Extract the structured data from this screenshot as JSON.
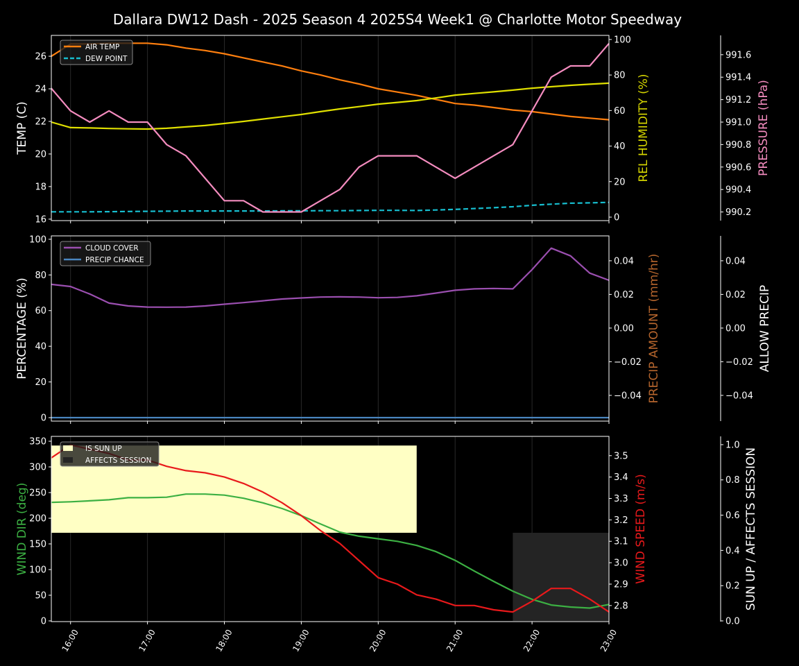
{
  "chart_data": {
    "type": "line",
    "title": "Dallara DW12 Dash - 2025 Season 4 2025S4 Week1 @ Charlotte Motor Speedway",
    "x": [
      "15:45",
      "16:00",
      "16:15",
      "16:30",
      "16:45",
      "17:00",
      "17:15",
      "17:30",
      "17:45",
      "18:00",
      "18:15",
      "18:30",
      "18:45",
      "19:00",
      "19:15",
      "19:30",
      "19:45",
      "20:00",
      "20:15",
      "20:30",
      "20:45",
      "21:00",
      "21:15",
      "21:30",
      "21:45",
      "22:00",
      "22:15",
      "22:30",
      "22:45",
      "23:00"
    ],
    "x_ticks": [
      "16:00",
      "17:00",
      "18:00",
      "19:00",
      "20:00",
      "21:00",
      "22:00",
      "23:00"
    ],
    "panels": [
      {
        "legend": "top-left",
        "axes": [
          {
            "label": "TEMP (C)",
            "color": "#ffffff",
            "ylim": [
              15.91,
              27.28
            ],
            "ticks": [
              16,
              18,
              20,
              22,
              24,
              26
            ],
            "tick_labels": [
              "16",
              "18",
              "20",
              "22",
              "24",
              "26"
            ]
          },
          {
            "label": "REL HUMIDITY (%)",
            "color": "#d4d400",
            "ylim": [
              -1.95,
              102.3
            ],
            "ticks": [
              0,
              20,
              40,
              60,
              80,
              100
            ],
            "tick_labels": [
              "0",
              "20",
              "40",
              "60",
              "80",
              "100"
            ]
          },
          {
            "label": "PRESSURE (hPa)",
            "color": "#f48cbf",
            "ylim": [
              990.123,
              991.772
            ],
            "ticks": [
              990.2,
              990.4,
              990.6,
              990.8,
              991.0,
              991.2,
              991.4,
              991.6
            ],
            "tick_labels": [
              "990.2",
              "990.4",
              "990.6",
              "990.8",
              "991.0",
              "991.2",
              "991.4",
              "991.6"
            ]
          }
        ],
        "series": [
          {
            "name": "AIR TEMP",
            "axis": 0,
            "color": "#ff7f0e",
            "dash": false,
            "legend": true,
            "values": [
              26.0,
              26.75,
              26.75,
              26.8,
              26.8,
              26.8,
              26.7,
              26.5,
              26.35,
              26.15,
              25.9,
              25.65,
              25.4,
              25.1,
              24.85,
              24.55,
              24.3,
              24.0,
              23.8,
              23.6,
              23.35,
              23.1,
              23.0,
              22.85,
              22.7,
              22.6,
              22.45,
              22.3,
              22.2,
              22.1
            ]
          },
          {
            "name": "DEW POINT",
            "axis": 0,
            "color": "#17becf",
            "dash": true,
            "legend": true,
            "values": [
              16.45,
              16.45,
              16.45,
              16.46,
              16.47,
              16.48,
              16.49,
              16.5,
              16.5,
              16.5,
              16.5,
              16.5,
              16.51,
              16.51,
              16.52,
              16.52,
              16.53,
              16.54,
              16.54,
              16.53,
              16.56,
              16.6,
              16.65,
              16.7,
              16.76,
              16.85,
              16.92,
              16.98,
              17.0,
              17.03
            ]
          },
          {
            "name": "REL HUMIDITY",
            "axis": 1,
            "color": "#e0e000",
            "dash": false,
            "legend": false,
            "values": [
              53.5,
              50.4,
              50.2,
              49.9,
              49.7,
              49.6,
              50.0,
              50.8,
              51.6,
              52.7,
              53.9,
              55.2,
              56.5,
              57.8,
              59.4,
              60.9,
              62.2,
              63.6,
              64.6,
              65.6,
              67.1,
              68.7,
              69.6,
              70.5,
              71.5,
              72.6,
              73.4,
              74.2,
              74.8,
              75.4
            ]
          },
          {
            "name": "PRESSURE",
            "axis": 2,
            "color": "#f48cbf",
            "dash": false,
            "legend": false,
            "values": [
              991.3,
              991.1,
              991.0,
              991.1,
              991.0,
              991.0,
              990.8,
              990.7,
              990.5,
              990.3,
              990.3,
              990.2,
              990.2,
              990.2,
              990.3,
              990.4,
              990.6,
              990.7,
              990.7,
              990.7,
              990.6,
              990.5,
              990.6,
              990.7,
              990.8,
              991.1,
              991.4,
              991.5,
              991.5,
              991.7
            ]
          }
        ]
      },
      {
        "legend": "top-left",
        "axes": [
          {
            "label": "PERCENTAGE (%)",
            "color": "#ffffff",
            "ylim": [
              -1.95,
              101.9
            ],
            "ticks": [
              0,
              20,
              40,
              60,
              80,
              100
            ],
            "tick_labels": [
              "0",
              "20",
              "40",
              "60",
              "80",
              "100"
            ]
          },
          {
            "label": "PRECIP AMOUNT (mm/hr)",
            "color": "#b5652d",
            "ylim": [
              -0.0553,
              0.0548
            ],
            "ticks": [
              -0.04,
              -0.02,
              0,
              0.02,
              0.04
            ],
            "tick_labels": [
              "−0.04",
              "−0.02",
              "0.00",
              "0.02",
              "0.04"
            ]
          },
          {
            "label": "ALLOW PRECIP",
            "color": "#ffffff",
            "ylim": [
              -0.0553,
              0.0548
            ],
            "ticks": [
              -0.04,
              -0.02,
              0,
              0.02,
              0.04
            ],
            "tick_labels": [
              "−0.04",
              "−0.02",
              "0.00",
              "0.02",
              "0.04"
            ]
          }
        ],
        "series": [
          {
            "name": "CLOUD COVER",
            "axis": 0,
            "color": "#9b4fb0",
            "dash": false,
            "legend": true,
            "values": [
              74.7,
              73.5,
              69.3,
              64.2,
              62.6,
              62.0,
              61.9,
              62.0,
              62.6,
              63.6,
              64.5,
              65.5,
              66.5,
              67.1,
              67.6,
              67.7,
              67.6,
              67.2,
              67.4,
              68.3,
              69.8,
              71.4,
              72.2,
              72.4,
              72.2,
              83.0,
              95.0,
              90.7,
              81.0,
              77.0
            ]
          },
          {
            "name": "PRECIP CHANCE",
            "axis": 0,
            "color": "#4a86c0",
            "dash": false,
            "legend": true,
            "values": [
              0,
              0,
              0,
              0,
              0,
              0,
              0,
              0,
              0,
              0,
              0,
              0,
              0,
              0,
              0,
              0,
              0,
              0,
              0,
              0,
              0,
              0,
              0,
              0,
              0,
              0,
              0,
              0,
              0,
              0
            ]
          }
        ]
      },
      {
        "legend": "top-left",
        "axes": [
          {
            "label": "WIND DIR (deg)",
            "color": "#3cb043",
            "ylim": [
              -1.35,
              359.5
            ],
            "ticks": [
              0,
              50,
              100,
              150,
              200,
              250,
              300,
              350
            ],
            "tick_labels": [
              "0",
              "50",
              "100",
              "150",
              "200",
              "250",
              "300",
              "350"
            ]
          },
          {
            "label": "WIND SPEED (m/s)",
            "color": "#e8191b",
            "ylim": [
              2.725,
              3.59
            ],
            "ticks": [
              2.8,
              2.9,
              3.0,
              3.1,
              3.2,
              3.3,
              3.4,
              3.5
            ],
            "tick_labels": [
              "2.8",
              "2.9",
              "3.0",
              "3.1",
              "3.2",
              "3.3",
              "3.4",
              "3.5"
            ]
          },
          {
            "label": "SUN UP / AFFECTS SESSION",
            "color": "#ffffff",
            "ylim": [
              -0.004,
              1.047
            ],
            "ticks": [
              0,
              0.2,
              0.4,
              0.6,
              0.8,
              1.0
            ],
            "tick_labels": [
              "0.0",
              "0.2",
              "0.4",
              "0.6",
              "0.8",
              "1.0"
            ]
          }
        ],
        "bands": [
          {
            "name": "IS SUN UP",
            "color": "#ffffc4",
            "from": "15:45",
            "to": "20:30",
            "range": [
              0.5,
              0.995
            ]
          },
          {
            "name": "AFFECTS SESSION",
            "color": "#242424",
            "from": "21:45",
            "to": "23:00",
            "range": [
              0,
              0.5
            ]
          }
        ],
        "series": [
          {
            "name": "WIND DIR",
            "axis": 0,
            "color": "#3cb043",
            "dash": false,
            "legend": false,
            "values": [
              231,
              232,
              234,
              236,
              240,
              240,
              241,
              247,
              247,
              245,
              239,
              230,
              219,
              205,
              189,
              173,
              165,
              160,
              155,
              147,
              135,
              118,
              97,
              77,
              58,
              42,
              31,
              27,
              25,
              32
            ]
          },
          {
            "name": "WIND SPEED",
            "axis": 1,
            "color": "#e8191b",
            "dash": false,
            "legend": false,
            "values": [
              3.49,
              3.55,
              3.53,
              3.51,
              3.48,
              3.48,
              3.45,
              3.43,
              3.42,
              3.4,
              3.37,
              3.33,
              3.28,
              3.22,
              3.15,
              3.09,
              3.01,
              2.93,
              2.9,
              2.85,
              2.83,
              2.8,
              2.8,
              2.78,
              2.77,
              2.82,
              2.88,
              2.88,
              2.83,
              2.77
            ]
          }
        ]
      }
    ]
  }
}
